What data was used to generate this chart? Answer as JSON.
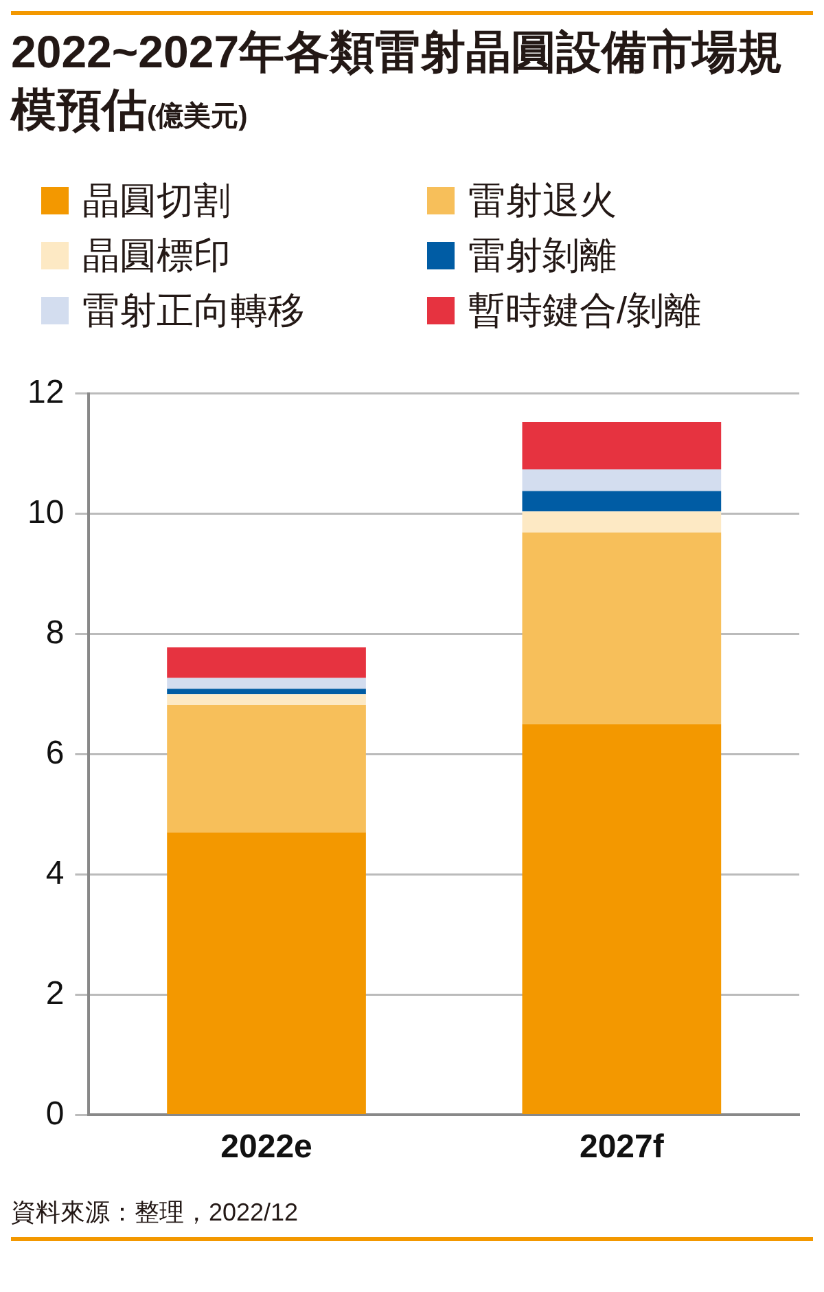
{
  "chart_data": {
    "type": "bar",
    "title": "2022~2027年各類雷射晶圓設備市場規模預估",
    "subtitle": "(億美元)",
    "categories": [
      "2022e",
      "2027f"
    ],
    "stacked": true,
    "series": [
      {
        "name": "晶圓切割",
        "color": "#f39800",
        "values": [
          4.7,
          6.5
        ]
      },
      {
        "name": "雷射退火",
        "color": "#f7bf5a",
        "values": [
          2.12,
          3.19
        ]
      },
      {
        "name": "晶圓標印",
        "color": "#fde9c4",
        "values": [
          0.18,
          0.35
        ]
      },
      {
        "name": "雷射剝離",
        "color": "#005ca4",
        "values": [
          0.09,
          0.34
        ]
      },
      {
        "name": "雷射正向轉移",
        "color": "#d3ddef",
        "values": [
          0.18,
          0.36
        ]
      },
      {
        "name": "暫時鍵合/剝離",
        "color": "#e63340",
        "values": [
          0.51,
          0.79
        ]
      }
    ],
    "ylim": [
      0,
      12
    ],
    "yticks": [
      0,
      2,
      4,
      6,
      8,
      10,
      12
    ],
    "grid": "y",
    "legend": "top",
    "annotations": [
      "資料來源：整理，2022/12"
    ]
  }
}
